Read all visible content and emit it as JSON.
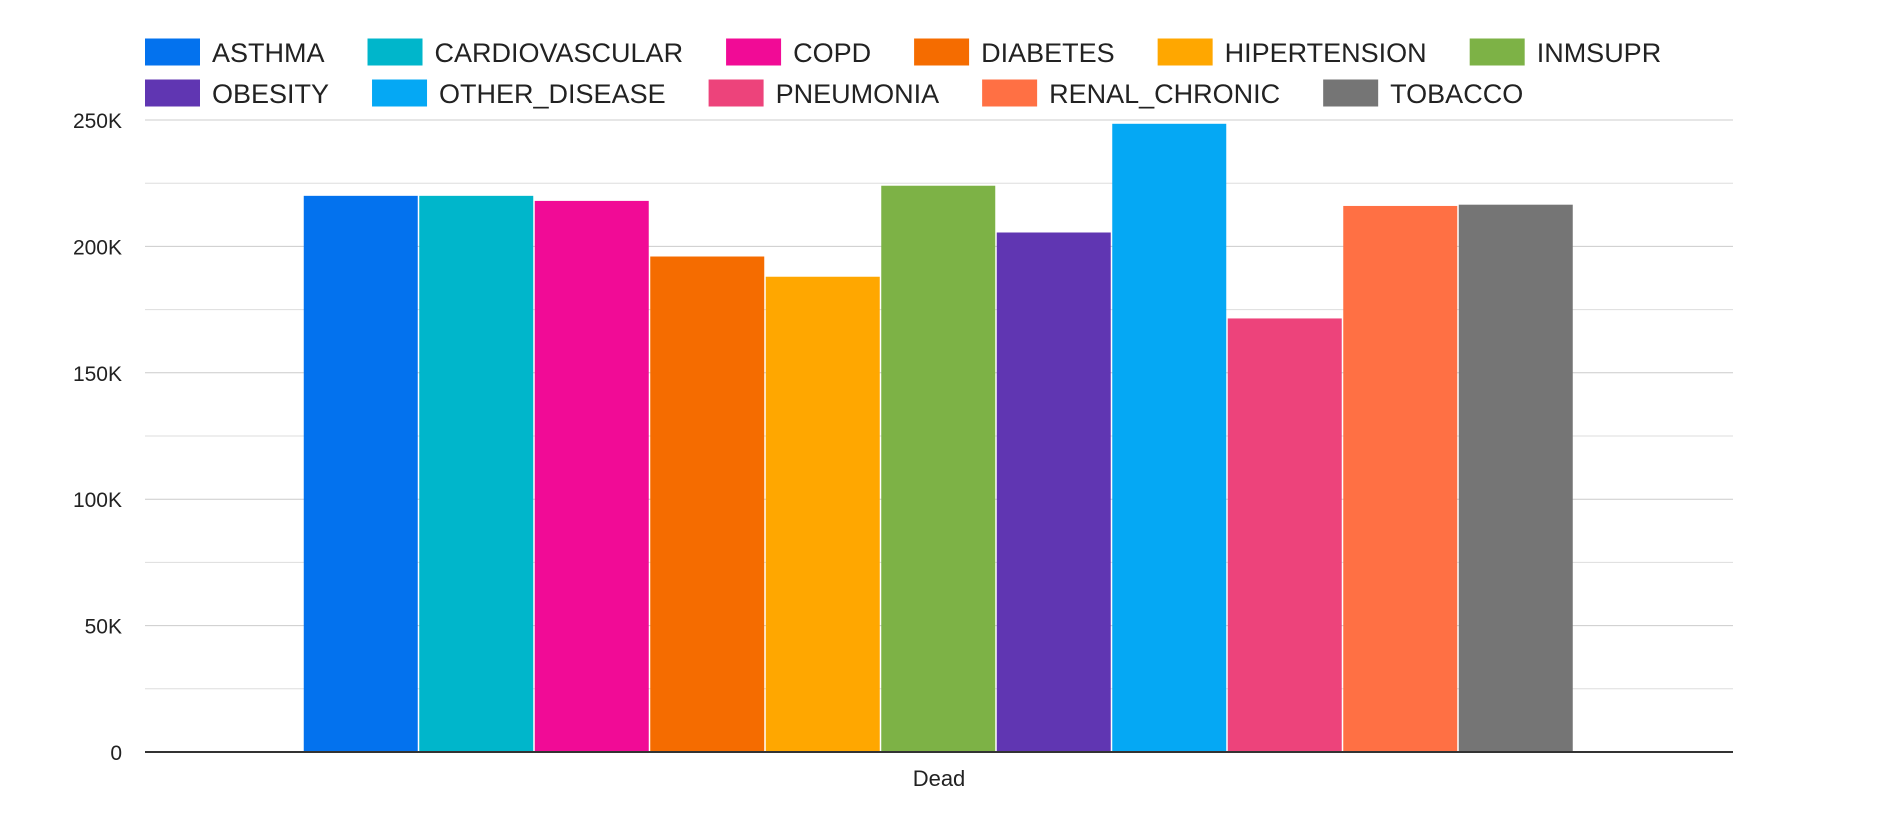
{
  "chart_data": {
    "type": "bar",
    "categories": [
      "Dead"
    ],
    "series": [
      {
        "name": "ASTHMA",
        "values": [
          220000
        ],
        "color": "#0372EE"
      },
      {
        "name": "CARDIOVASCULAR",
        "values": [
          220000
        ],
        "color": "#00B6CB"
      },
      {
        "name": "COPD",
        "values": [
          218000
        ],
        "color": "#F10B96"
      },
      {
        "name": "DIABETES",
        "values": [
          196000
        ],
        "color": "#F56C00"
      },
      {
        "name": "HIPERTENSION",
        "values": [
          188000
        ],
        "color": "#FFA700"
      },
      {
        "name": "INMSUPR",
        "values": [
          224000
        ],
        "color": "#7DB246"
      },
      {
        "name": "OBESITY",
        "values": [
          205500
        ],
        "color": "#6036B2"
      },
      {
        "name": "OTHER_DISEASE",
        "values": [
          248500
        ],
        "color": "#05A8F4"
      },
      {
        "name": "PNEUMONIA",
        "values": [
          171500
        ],
        "color": "#ED437B"
      },
      {
        "name": "RENAL_CHRONIC",
        "values": [
          216000
        ],
        "color": "#FF7044"
      },
      {
        "name": "TOBACCO",
        "values": [
          216500
        ],
        "color": "#757575"
      }
    ],
    "title": "",
    "xlabel": "",
    "ylabel": "",
    "ylim": [
      0,
      250000
    ],
    "yticks": [
      {
        "value": 0,
        "label": "0"
      },
      {
        "value": 50000,
        "label": "50K"
      },
      {
        "value": 100000,
        "label": "100K"
      },
      {
        "value": 150000,
        "label": "150K"
      },
      {
        "value": 200000,
        "label": "200K"
      },
      {
        "value": 250000,
        "label": "250K"
      }
    ],
    "grid": true,
    "legend_position": "top"
  }
}
